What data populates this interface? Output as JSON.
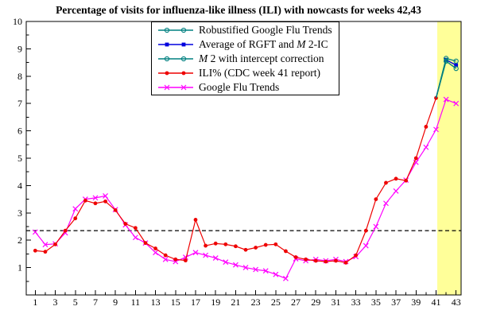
{
  "title": "Percentage of visits for influenza-like illness (ILI) with nowcasts for weeks 42,43",
  "chart_data": {
    "type": "line",
    "title": "Percentage of visits for influenza-like illness (ILI) with nowcasts for weeks 42,43",
    "xlabel": "",
    "ylabel": "",
    "xlim": [
      0.1,
      43.5
    ],
    "ylim": [
      0,
      10
    ],
    "grid": false,
    "x_major_ticks": [
      1,
      3,
      5,
      7,
      9,
      11,
      13,
      15,
      17,
      19,
      21,
      23,
      25,
      27,
      29,
      31,
      33,
      35,
      37,
      39,
      41,
      43
    ],
    "x_minor_ticks": [
      2,
      4,
      6,
      8,
      10,
      12,
      14,
      16,
      18,
      20,
      22,
      24,
      26,
      28,
      30,
      32,
      34,
      36,
      38,
      40,
      42
    ],
    "y_major_ticks": [
      1,
      2,
      3,
      4,
      5,
      6,
      7,
      8,
      9,
      10
    ],
    "y_minor_ticks": [
      0.5,
      1.5,
      2.5,
      3.5,
      4.5,
      5.5,
      6.5,
      7.5,
      8.5,
      9.5
    ],
    "threshold_line": {
      "y": 2.35,
      "style": "dashed",
      "color": "#000000"
    },
    "highlight_band": {
      "x_start": 41.1,
      "x_end": 43.5,
      "color": "#ffff99",
      "note": "nowcast weeks 42,43"
    },
    "legend_position": "top-center",
    "series": [
      {
        "name": "Robustified Google Flu Trends",
        "color": "#008080",
        "marker": "circle",
        "x_start": 41,
        "markers_start_index": 1,
        "values": [
          7.2,
          8.65,
          8.55
        ]
      },
      {
        "name": "Average of RGFT and M 2-IC",
        "color": "#0000dd",
        "marker": "square",
        "x_start": 41,
        "markers_start_index": 1,
        "values": [
          7.2,
          8.6,
          8.4
        ]
      },
      {
        "name": "M 2 with intercept correction",
        "color": "#008080",
        "marker": "circle",
        "x_start": 41,
        "markers_start_index": 1,
        "values": [
          7.2,
          8.55,
          8.28
        ]
      },
      {
        "name": "ILI% (CDC week 41 report)",
        "color": "#ee0000",
        "marker": "dot",
        "x_start": 1,
        "markers_start_index": 0,
        "values": [
          1.62,
          1.58,
          1.85,
          2.35,
          2.8,
          3.45,
          3.35,
          3.42,
          3.1,
          2.6,
          2.45,
          1.9,
          1.7,
          1.45,
          1.3,
          1.26,
          2.75,
          1.8,
          1.88,
          1.85,
          1.78,
          1.65,
          1.73,
          1.83,
          1.85,
          1.6,
          1.38,
          1.3,
          1.25,
          1.22,
          1.25,
          1.18,
          1.45,
          2.35,
          3.5,
          4.1,
          4.25,
          4.18,
          5.0,
          6.15,
          7.2
        ]
      },
      {
        "name": "Google Flu Trends",
        "color": "#ff00ff",
        "marker": "x",
        "x_start": 1,
        "markers_start_index": 0,
        "values": [
          2.3,
          1.84,
          1.87,
          2.27,
          3.15,
          3.5,
          3.55,
          3.62,
          3.12,
          2.56,
          2.1,
          1.9,
          1.55,
          1.3,
          1.22,
          1.38,
          1.55,
          1.45,
          1.35,
          1.2,
          1.1,
          1.0,
          0.93,
          0.88,
          0.75,
          0.6,
          1.32,
          1.25,
          1.3,
          1.25,
          1.3,
          1.22,
          1.4,
          1.8,
          2.5,
          3.35,
          3.8,
          4.2,
          4.85,
          5.4,
          6.05,
          7.15,
          7.0
        ]
      }
    ],
    "legend_entries": [
      {
        "pre": "Robustified Google Flu Trends",
        "it": "",
        "post": ""
      },
      {
        "pre": "Average of RGFT and ",
        "it": "M",
        "post": " 2-IC"
      },
      {
        "pre": "",
        "it": "M",
        "post": " 2 with intercept correction"
      },
      {
        "pre": "ILI% (CDC week 41 report)",
        "it": "",
        "post": ""
      },
      {
        "pre": "Google Flu Trends",
        "it": "",
        "post": ""
      }
    ]
  }
}
